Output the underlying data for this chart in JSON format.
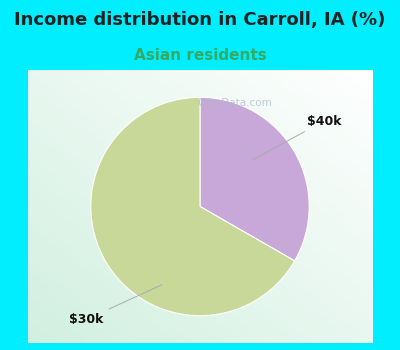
{
  "title": "Income distribution in Carroll, IA (%)",
  "subtitle": "Asian residents",
  "title_color": "#222222",
  "subtitle_color": "#33aa66",
  "title_fontsize": 13,
  "subtitle_fontsize": 11,
  "background_cyan": "#00eeff",
  "background_chart_tl": "#e8f5ee",
  "background_chart_br": "#f8ffff",
  "slices": [
    66.7,
    33.3
  ],
  "labels": [
    "$30k",
    "$40k"
  ],
  "colors": [
    "#c8d898",
    "#c8a8d8"
  ],
  "startangle": 90,
  "label_colors": [
    "#111111",
    "#111111"
  ],
  "label_fontsize": 9,
  "watermark": "City-Data.com"
}
